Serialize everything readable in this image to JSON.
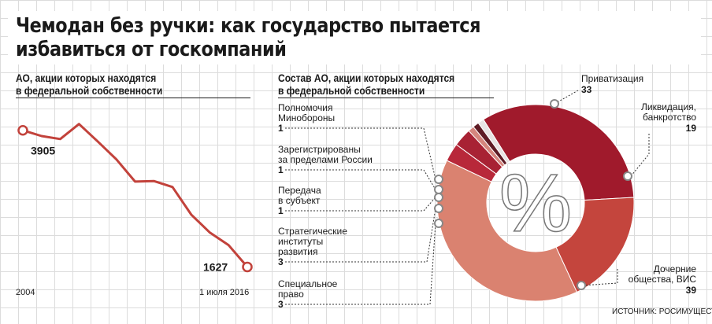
{
  "header": {
    "title_line1": "Чемодан без ручки: как государство пытается",
    "title_line2": "избавиться от госкомпаний",
    "source": "ИСТОЧНИК: РОСИМУЩЕСТВО"
  },
  "chart_data": [
    {
      "type": "line",
      "title": "АО, акции которых находятся в федеральной собственности",
      "subtitle_line1": "АО, акции которых находятся",
      "subtitle_line2": "в федеральной собственности",
      "x": [
        2004,
        2005,
        2006,
        2007,
        2008,
        2009,
        2010,
        2011,
        2012,
        2013,
        2014,
        2015,
        2016
      ],
      "values": [
        3905,
        3810,
        3760,
        4010,
        3720,
        3420,
        3050,
        3060,
        2960,
        2500,
        2200,
        1990,
        1627
      ],
      "x_start_label": "2004",
      "x_end_label": "1 июля 2016",
      "labels": {
        "start": "3905",
        "end": "1627"
      },
      "ylim": [
        1200,
        4400
      ],
      "color": "#c2423b",
      "grid": true
    },
    {
      "type": "pie",
      "donut": true,
      "title": "Состав АО, акции которых находятся в федеральной собственности",
      "subtitle_line1": "Состав АО, акции которых находятся",
      "subtitle_line2": "в федеральной собственности",
      "center_symbol": "%",
      "slices": [
        {
          "label_lines": [
            "Приватизация"
          ],
          "value": 33,
          "color": "#a01a2c"
        },
        {
          "label_lines": [
            "Ликвидация,",
            "банкротство"
          ],
          "value": 19,
          "color": "#c4453d"
        },
        {
          "label_lines": [
            "Дочерние",
            "общества, ВИС"
          ],
          "value": 39,
          "color": "#da8270"
        },
        {
          "label_lines": [
            "Специальное",
            "право"
          ],
          "value": 3,
          "color": "#b8283a"
        },
        {
          "label_lines": [
            "Стратегические",
            "институты",
            "развития"
          ],
          "value": 3,
          "color": "#a82234"
        },
        {
          "label_lines": [
            "Передача",
            "в субъект"
          ],
          "value": 1,
          "color": "#d5867e"
        },
        {
          "label_lines": [
            "Зарегистрированы",
            "за пределами России"
          ],
          "value": 1,
          "color": "#5e1b25"
        },
        {
          "label_lines": [
            "Полномочия",
            "Минобороны"
          ],
          "value": 1,
          "color": "#e8e4e4"
        }
      ],
      "legend": "callouts"
    }
  ]
}
